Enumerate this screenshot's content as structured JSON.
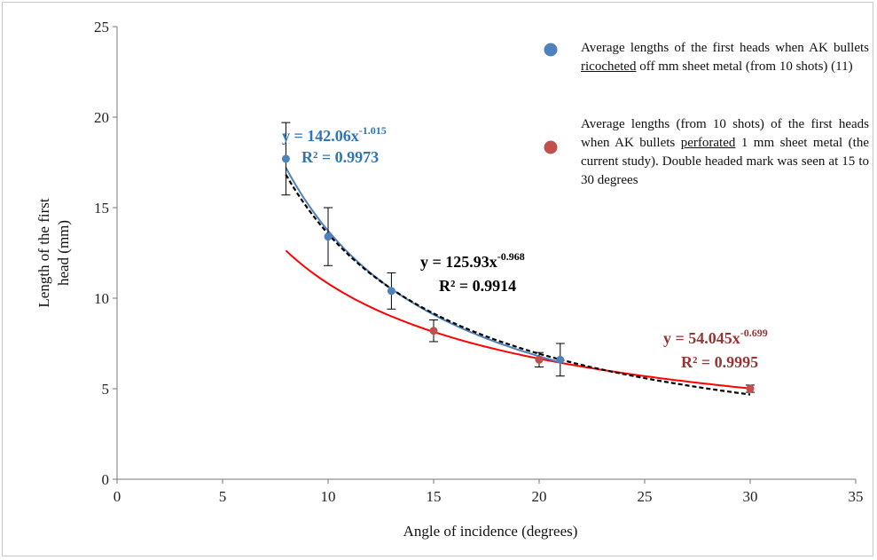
{
  "chart_data": {
    "type": "scatter",
    "xlabel": "Angle  of incidence  (degrees)",
    "ylabel_lines": [
      "Length of the first",
      "head (mm)"
    ],
    "xlim": [
      0,
      35
    ],
    "ylim": [
      0,
      25
    ],
    "xticks": [
      0,
      5,
      10,
      15,
      20,
      25,
      30,
      35
    ],
    "yticks": [
      0,
      5,
      10,
      15,
      20,
      25
    ],
    "series": [
      {
        "key": "ricochet",
        "color": "#4f81bd",
        "points": [
          {
            "x": 8,
            "y": 17.7,
            "err": 2.0
          },
          {
            "x": 10,
            "y": 13.4,
            "err": 1.6
          },
          {
            "x": 13,
            "y": 10.4,
            "err": 1.0
          },
          {
            "x": 20,
            "y": 6.6
          },
          {
            "x": 21,
            "y": 6.6,
            "err": 0.9
          }
        ],
        "fit": {
          "a": 142.06,
          "b": -1.015,
          "x_range": [
            8,
            21
          ],
          "color": "#4f81bd"
        },
        "equation": {
          "coef": "y = 142.06x",
          "exp": "-1.015",
          "r2": "R² = 0.9973",
          "color": "#2e75b6"
        }
      },
      {
        "key": "perforation",
        "color": "#c0504d",
        "points": [
          {
            "x": 15,
            "y": 8.2,
            "err": 0.6
          },
          {
            "x": 20,
            "y": 6.6,
            "err": 0.4
          },
          {
            "x": 30,
            "y": 5.0,
            "err": 0.2
          }
        ],
        "fit": {
          "a": 54.045,
          "b": -0.699,
          "x_range": [
            8,
            30
          ],
          "color": "#ff0000"
        },
        "equation": {
          "coef": "y = 54.045x",
          "exp": "-0.699",
          "r2": "R² = 0.9995",
          "color": "#943634"
        }
      },
      {
        "key": "combined",
        "fit": {
          "a": 125.93,
          "b": -0.968,
          "x_range": [
            8,
            30
          ],
          "color": "#000000",
          "dashed": true
        },
        "equation": {
          "coef": "y = 125.93x",
          "exp": "-0.968",
          "r2": "R² = 0.9914",
          "color": "#000000"
        }
      }
    ],
    "legend": [
      {
        "marker_color": "#4f81bd",
        "parts": [
          {
            "text": "Average lengths of the first heads when AK bullets "
          },
          {
            "text": "ricocheted",
            "underline": true
          },
          {
            "text": " off mm sheet metal (from 10 shots) (11)"
          }
        ]
      },
      {
        "marker_color": "#c0504d",
        "parts": [
          {
            "text": "Average lengths (from 10 shots) of the first heads when AK bullets "
          },
          {
            "text": "perforated",
            "underline": true
          },
          {
            "text": " 1 mm sheet metal (the current study). Double headed mark was seen at 15 to 30 degrees"
          }
        ]
      }
    ]
  }
}
